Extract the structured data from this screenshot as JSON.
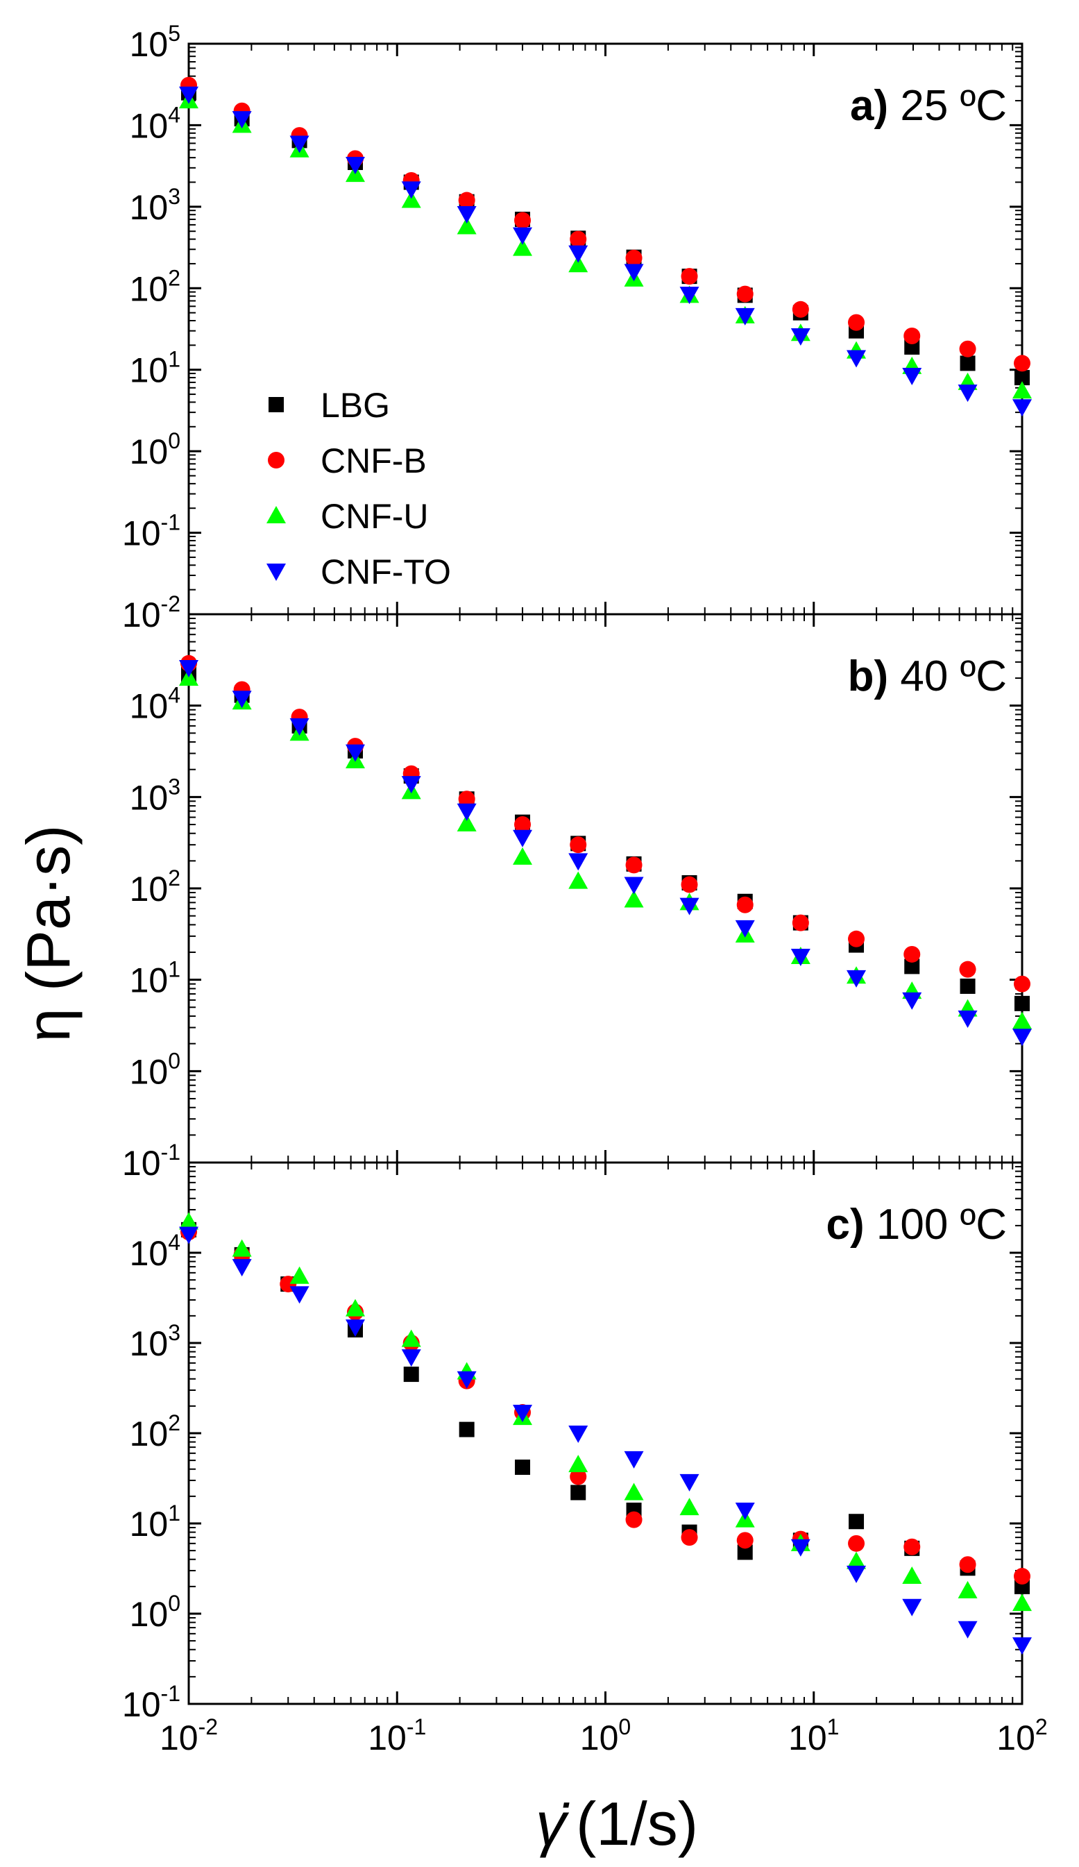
{
  "figure": {
    "y_axis_label": "η (Pa·s)",
    "x_axis_label_symbol": "γ̇",
    "x_axis_label_unit": "(1/s)"
  },
  "chart_data": {
    "type": "scatter",
    "xscale": "log",
    "yscale": "log",
    "xlim": [
      0.01,
      100
    ],
    "xlabel": "γ̇ (1/s)",
    "ylabel": "η (Pa·s)",
    "x_ticks": [
      {
        "base": "10",
        "exp": "-2"
      },
      {
        "base": "10",
        "exp": "-1"
      },
      {
        "base": "10",
        "exp": "0"
      },
      {
        "base": "10",
        "exp": "1"
      },
      {
        "base": "10",
        "exp": "2"
      }
    ],
    "legend": {
      "placement": "left-center of panel a",
      "entries": [
        {
          "name": "LBG",
          "marker": "square",
          "color": "#000000"
        },
        {
          "name": "CNF-B",
          "marker": "circle",
          "color": "#ff0000"
        },
        {
          "name": "CNF-U",
          "marker": "triangle-up",
          "color": "#00ff00"
        },
        {
          "name": "CNF-TO",
          "marker": "triangle-down",
          "color": "#0000ff"
        }
      ]
    },
    "panels": [
      {
        "id": "a",
        "label_letter": "a)",
        "label_temp": "25 ºC",
        "ylim": [
          0.01,
          100000
        ],
        "y_ticks": [
          {
            "base": "10",
            "exp": "5"
          },
          {
            "base": "10",
            "exp": "4"
          },
          {
            "base": "10",
            "exp": "3"
          },
          {
            "base": "10",
            "exp": "2"
          },
          {
            "base": "10",
            "exp": "1"
          },
          {
            "base": "10",
            "exp": "0"
          },
          {
            "base": "10",
            "exp": "-1"
          },
          {
            "base": "10",
            "exp": "-2"
          }
        ],
        "series": [
          {
            "name": "LBG",
            "x": [
              0.01,
              0.018,
              0.034,
              0.063,
              0.117,
              0.216,
              0.4,
              0.74,
              1.37,
              2.53,
              4.68,
              8.65,
              16,
              29.6,
              54.8,
              100
            ],
            "y": [
              25000,
              12000,
              6500,
              3500,
              2000,
              1150,
              700,
              410,
              240,
              140,
              82,
              50,
              30,
              19,
              12,
              8
            ]
          },
          {
            "name": "CNF-B",
            "x": [
              0.01,
              0.018,
              0.034,
              0.063,
              0.117,
              0.216,
              0.4,
              0.74,
              1.37,
              2.53,
              4.68,
              8.65,
              16,
              29.6,
              54.8,
              100
            ],
            "y": [
              31000,
              15000,
              7500,
              3900,
              2100,
              1200,
              680,
              400,
              235,
              140,
              85,
              55,
              38,
              26,
              18,
              12
            ]
          },
          {
            "name": "CNF-U",
            "x": [
              0.01,
              0.018,
              0.034,
              0.063,
              0.117,
              0.216,
              0.4,
              0.74,
              1.37,
              2.53,
              4.68,
              8.65,
              16,
              29.6,
              54.8,
              100
            ],
            "y": [
              20000,
              10000,
              5000,
              2500,
              1200,
              570,
              310,
              195,
              130,
              82,
              46,
              28,
              17,
              11,
              7,
              5.5
            ]
          },
          {
            "name": "CNF-TO",
            "x": [
              0.01,
              0.018,
              0.034,
              0.063,
              0.117,
              0.216,
              0.4,
              0.74,
              1.37,
              2.53,
              4.68,
              8.65,
              16,
              29.6,
              54.8,
              100
            ],
            "y": [
              24000,
              12000,
              6000,
              3300,
              1650,
              820,
              450,
              270,
              160,
              84,
              46,
              26,
              14,
              8.5,
              5.3,
              3.5
            ]
          }
        ]
      },
      {
        "id": "b",
        "label_letter": "b)",
        "label_temp": "40 ºC",
        "ylim": [
          0.1,
          100000
        ],
        "y_ticks": [
          {
            "base": "10",
            "exp": "4"
          },
          {
            "base": "10",
            "exp": "3"
          },
          {
            "base": "10",
            "exp": "2"
          },
          {
            "base": "10",
            "exp": "1"
          },
          {
            "base": "10",
            "exp": "0"
          },
          {
            "base": "10",
            "exp": "-1"
          }
        ],
        "series": [
          {
            "name": "LBG",
            "x": [
              0.01,
              0.018,
              0.034,
              0.063,
              0.117,
              0.216,
              0.4,
              0.74,
              1.37,
              2.53,
              4.68,
              8.65,
              16,
              29.6,
              54.8,
              100
            ],
            "y": [
              22000,
              13000,
              6000,
              3200,
              1700,
              950,
              530,
              310,
              185,
              115,
              72,
              42,
              24,
              14,
              8.5,
              5.5
            ]
          },
          {
            "name": "CNF-B",
            "x": [
              0.01,
              0.018,
              0.034,
              0.063,
              0.117,
              0.216,
              0.4,
              0.74,
              1.37,
              2.53,
              4.68,
              8.65,
              16,
              29.6,
              54.8,
              100
            ],
            "y": [
              29000,
              15000,
              7500,
              3600,
              1800,
              950,
              500,
              300,
              180,
              110,
              66,
              42,
              28,
              19,
              13,
              9
            ]
          },
          {
            "name": "CNF-U",
            "x": [
              0.01,
              0.018,
              0.034,
              0.063,
              0.117,
              0.216,
              0.4,
              0.74,
              1.37,
              2.53,
              4.68,
              8.65,
              16,
              29.6,
              54.8,
              100
            ],
            "y": [
              20000,
              11000,
              5000,
              2500,
              1150,
              510,
              220,
              120,
              75,
              70,
              31,
              18,
              11,
              7.5,
              4.8,
              3.5
            ]
          },
          {
            "name": "CNF-TO",
            "x": [
              0.01,
              0.018,
              0.034,
              0.063,
              0.117,
              0.216,
              0.4,
              0.74,
              1.37,
              2.53,
              4.68,
              8.65,
              16,
              29.6,
              54.8,
              100
            ],
            "y": [
              26000,
              12000,
              6000,
              3100,
              1400,
              700,
              360,
              200,
              110,
              65,
              37,
              18,
              10.5,
              6,
              3.8,
              2.4
            ]
          }
        ]
      },
      {
        "id": "c",
        "label_letter": "c)",
        "label_temp": "100 ºC",
        "ylim": [
          0.1,
          100000
        ],
        "y_ticks": [
          {
            "base": "10",
            "exp": "4"
          },
          {
            "base": "10",
            "exp": "3"
          },
          {
            "base": "10",
            "exp": "2"
          },
          {
            "base": "10",
            "exp": "1"
          },
          {
            "base": "10",
            "exp": "0"
          },
          {
            "base": "10",
            "exp": "-1"
          }
        ],
        "series": [
          {
            "name": "LBG",
            "x": [
              0.01,
              0.018,
              0.03,
              0.063,
              0.117,
              0.216,
              0.4,
              0.74,
              1.37,
              2.53,
              4.68,
              8.65,
              16,
              29.6,
              54.8,
              100
            ],
            "y": [
              18000,
              9500,
              4500,
              1400,
              450,
              110,
              42,
              22,
              14,
              8,
              4.8,
              6.5,
              10.5,
              5.3,
              3.2,
              2
            ]
          },
          {
            "name": "CNF-B",
            "x": [
              0.01,
              0.018,
              0.03,
              0.063,
              0.117,
              0.216,
              0.4,
              0.74,
              1.37,
              2.53,
              4.68,
              8.65,
              16,
              29.6,
              54.8,
              100
            ],
            "y": [
              17000,
              9500,
              4500,
              2200,
              1000,
              380,
              170,
              33,
              11,
              7,
              6.5,
              6.7,
              6,
              5.5,
              3.5,
              2.6
            ]
          },
          {
            "name": "CNF-U",
            "x": [
              0.01,
              0.018,
              0.034,
              0.063,
              0.117,
              0.216,
              0.4,
              0.74,
              1.37,
              2.53,
              4.68,
              8.65,
              16,
              29.6,
              54.8,
              100
            ],
            "y": [
              22000,
              11000,
              5500,
              2400,
              1100,
              480,
              150,
              45,
              22,
              15,
              11,
              6,
              3.8,
              2.6,
              1.8,
              1.3
            ]
          },
          {
            "name": "CNF-TO",
            "x": [
              0.01,
              0.018,
              0.034,
              0.063,
              0.117,
              0.216,
              0.4,
              0.74,
              1.37,
              2.53,
              4.68,
              8.65,
              16,
              29.6,
              54.8,
              100
            ],
            "y": [
              16000,
              7000,
              3500,
              1500,
              700,
              400,
              170,
              100,
              52,
              29,
              14,
              5.5,
              2.8,
              1.2,
              0.68,
              0.45
            ]
          }
        ]
      }
    ]
  }
}
